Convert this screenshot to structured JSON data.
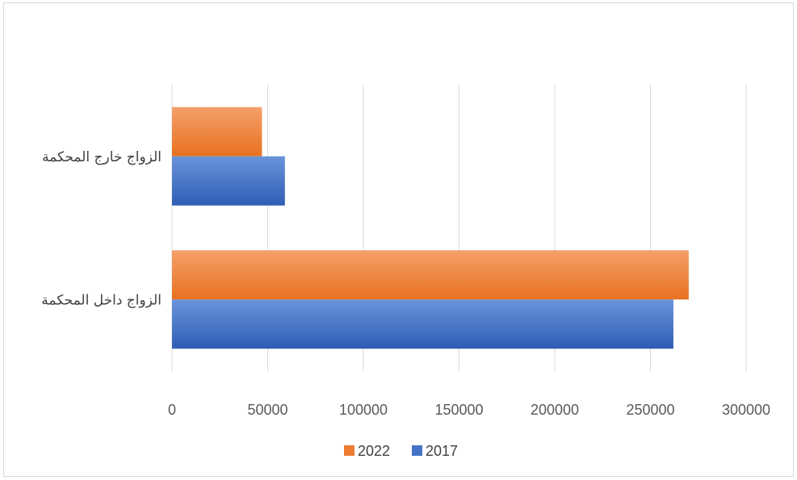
{
  "chart_data": {
    "type": "bar",
    "orientation": "horizontal",
    "categories": [
      "الزواج خارج المحكمة",
      "الزواج داخل المحكمة"
    ],
    "series": [
      {
        "name": "2022",
        "values": [
          47000,
          270000
        ],
        "color": "#ED7D31"
      },
      {
        "name": "2017",
        "values": [
          59000,
          262000
        ],
        "color": "#4472C4"
      }
    ],
    "x_ticks": [
      "0",
      "50000",
      "100000",
      "150000",
      "200000",
      "250000",
      "300000"
    ],
    "xlim": [
      0,
      300000
    ],
    "grid": true,
    "legend_position": "bottom"
  }
}
